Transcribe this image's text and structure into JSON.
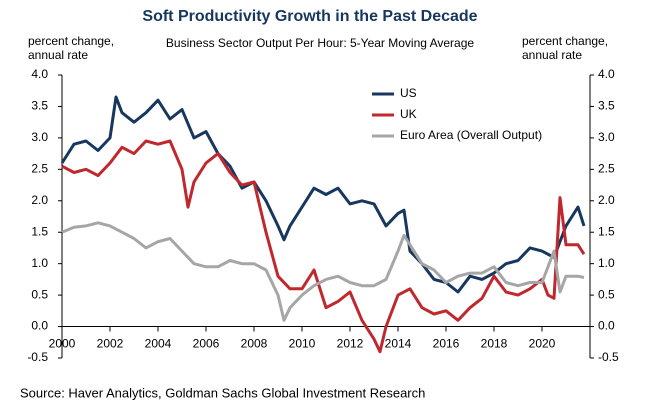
{
  "chart_data": {
    "type": "line",
    "title": "Soft Productivity Growth in the Past Decade",
    "subtitle": "Business Sector Output Per Hour: 5-Year Moving Average",
    "ylabel": [
      "percent change,",
      "annual rate"
    ],
    "y2label": [
      "percent change,",
      "annual rate"
    ],
    "source": "Source: Haver Analytics, Goldman Sachs Global Investment Research",
    "xlim": [
      2000,
      2022
    ],
    "xticks": [
      2000,
      2002,
      2004,
      2006,
      2008,
      2010,
      2012,
      2014,
      2016,
      2018,
      2020
    ],
    "ylim": [
      -0.5,
      4
    ],
    "yticks": [
      -0.5,
      {
        "value": 0,
        "label": "0.0"
      },
      0.5,
      {
        "value": 1,
        "label": "1.0"
      },
      1.5,
      {
        "value": 2,
        "label": "2.0"
      },
      2.5,
      {
        "value": 3,
        "label": "3.0"
      },
      3.5,
      {
        "value": 4,
        "label": "4.0"
      }
    ],
    "y2lim": [
      -0.5,
      4
    ],
    "y2ticks": [
      -0.5,
      {
        "value": 0,
        "label": "0.0"
      },
      0.5,
      {
        "value": 1,
        "label": "1.0"
      },
      1.5,
      {
        "value": 2,
        "label": "2.0"
      },
      2.5,
      {
        "value": 3,
        "label": "3.0"
      },
      3.5,
      {
        "value": 4,
        "label": "4.0"
      }
    ],
    "legend": "top",
    "series": [
      {
        "name": "US",
        "color": "#17375e",
        "x": [
          2000,
          2000.5,
          2001,
          2001.5,
          2002,
          2002.25,
          2002.5,
          2003,
          2003.5,
          2004,
          2004.5,
          2005,
          2005.5,
          2006,
          2006.5,
          2007,
          2007.5,
          2008,
          2008.5,
          2009,
          2009.25,
          2009.5,
          2010,
          2010.5,
          2011,
          2011.5,
          2012,
          2012.5,
          2013,
          2013.5,
          2014,
          2014.25,
          2014.5,
          2015,
          2015.5,
          2016,
          2016.5,
          2017,
          2017.5,
          2018,
          2018.5,
          2019,
          2019.5,
          2020,
          2020.5,
          2021,
          2021.25,
          2021.5,
          2021.75
        ],
        "values": [
          2.6,
          2.9,
          2.95,
          2.8,
          3.0,
          3.65,
          3.4,
          3.25,
          3.4,
          3.6,
          3.3,
          3.45,
          3.0,
          3.1,
          2.75,
          2.55,
          2.2,
          2.3,
          2.0,
          1.6,
          1.38,
          1.6,
          1.9,
          2.2,
          2.1,
          2.2,
          1.95,
          2.0,
          1.95,
          1.6,
          1.8,
          1.85,
          1.2,
          1.0,
          0.75,
          0.7,
          0.55,
          0.8,
          0.75,
          0.85,
          1.0,
          1.05,
          1.25,
          1.2,
          1.1,
          1.6,
          1.75,
          1.9,
          1.6
        ]
      },
      {
        "name": "UK",
        "color": "#c0282d",
        "x": [
          2000,
          2000.5,
          2001,
          2001.5,
          2002,
          2002.5,
          2003,
          2003.5,
          2004,
          2004.5,
          2005,
          2005.25,
          2005.5,
          2006,
          2006.5,
          2007,
          2007.5,
          2008,
          2008.25,
          2008.5,
          2009,
          2009.5,
          2010,
          2010.5,
          2011,
          2011.5,
          2012,
          2012.5,
          2013,
          2013.25,
          2013.5,
          2014,
          2014.5,
          2015,
          2015.5,
          2016,
          2016.5,
          2017,
          2017.5,
          2018,
          2018.5,
          2019,
          2019.5,
          2020,
          2020.25,
          2020.5,
          2020.75,
          2021,
          2021.5,
          2021.75
        ],
        "values": [
          2.55,
          2.45,
          2.5,
          2.4,
          2.6,
          2.85,
          2.75,
          2.95,
          2.9,
          2.95,
          2.5,
          1.9,
          2.3,
          2.6,
          2.75,
          2.45,
          2.25,
          2.3,
          1.9,
          1.5,
          0.8,
          0.6,
          0.6,
          0.9,
          0.3,
          0.4,
          0.55,
          0.1,
          -0.2,
          -0.4,
          0.0,
          0.5,
          0.6,
          0.3,
          0.2,
          0.25,
          0.1,
          0.3,
          0.45,
          0.8,
          0.55,
          0.5,
          0.6,
          0.75,
          0.5,
          0.45,
          2.05,
          1.3,
          1.3,
          1.15
        ]
      },
      {
        "name": "Euro Area (Overall Output)",
        "color": "#a6a6a6",
        "x": [
          2000,
          2000.5,
          2001,
          2001.5,
          2002,
          2002.5,
          2003,
          2003.5,
          2004,
          2004.5,
          2005,
          2005.5,
          2006,
          2006.5,
          2007,
          2007.5,
          2008,
          2008.5,
          2009,
          2009.25,
          2009.5,
          2010,
          2010.5,
          2011,
          2011.5,
          2012,
          2012.5,
          2013,
          2013.5,
          2014,
          2014.25,
          2014.5,
          2015,
          2015.5,
          2016,
          2016.5,
          2017,
          2017.5,
          2018,
          2018.5,
          2019,
          2019.5,
          2020,
          2020.5,
          2020.75,
          2021,
          2021.5,
          2021.75
        ],
        "values": [
          1.5,
          1.58,
          1.6,
          1.65,
          1.6,
          1.5,
          1.4,
          1.25,
          1.35,
          1.4,
          1.2,
          1.0,
          0.95,
          0.95,
          1.05,
          1.0,
          1.0,
          0.9,
          0.5,
          0.1,
          0.3,
          0.5,
          0.65,
          0.75,
          0.8,
          0.7,
          0.65,
          0.65,
          0.75,
          1.2,
          1.45,
          1.3,
          1.0,
          0.9,
          0.7,
          0.8,
          0.85,
          0.85,
          0.95,
          0.7,
          0.65,
          0.7,
          0.7,
          1.2,
          0.55,
          0.8,
          0.8,
          0.78
        ]
      }
    ]
  }
}
